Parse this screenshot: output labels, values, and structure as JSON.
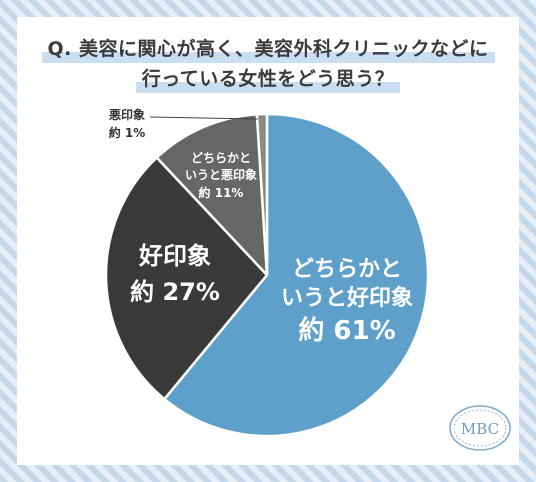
{
  "title": {
    "line1": "Q. 美容に関心が高く、美容外科クリニックなどに",
    "line2": "行っている女性をどう思う？"
  },
  "logo_text": "MBC",
  "colors": {
    "positive": "#5fa0cb",
    "good": "#3a3a3a",
    "somewhat_bad": "#666666",
    "bad": "#8a8a8a",
    "separator": "#ffffff"
  },
  "chart_data": {
    "type": "pie",
    "start": "top",
    "direction": "clockwise",
    "slices": [
      {
        "name": "どちらかというと好印象",
        "line1": "どちらかと",
        "line2": "いうと好印象",
        "line3": "約 61%",
        "value": 61
      },
      {
        "name": "好印象",
        "line1": "好印象",
        "line2": "約 27%",
        "value": 27
      },
      {
        "name": "どちらかというと悪印象",
        "line1": "どちらかと",
        "line2": "いうと悪印象",
        "line3": "約 11%",
        "value": 11
      },
      {
        "name": "悪印象",
        "line1": "悪印象",
        "line2": "約 1%",
        "value": 1
      }
    ]
  }
}
